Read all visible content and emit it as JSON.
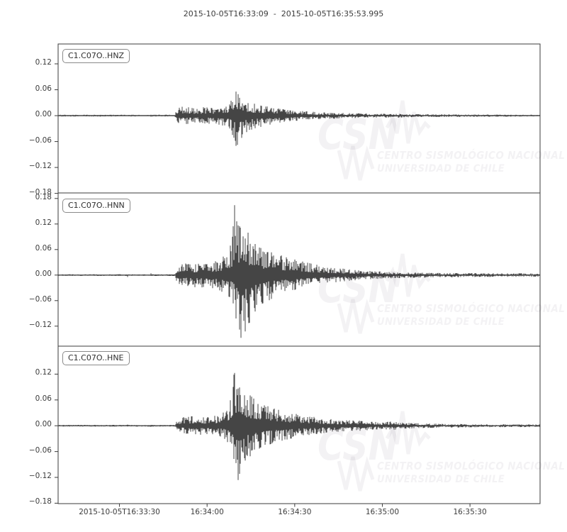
{
  "title": "2015-10-05T16:33:09  -  2015-10-05T16:35:53.995",
  "colors": {
    "background": "#ffffff",
    "trace": "#454545",
    "spine": "#3b3b3b",
    "tick_label": "#3c3c3c",
    "title_text": "#3c3c3c",
    "label_box_border": "#8a8a8a",
    "label_box_text": "#2f2f2f",
    "watermark": "rgba(40,20,50,0.055)"
  },
  "watermark": {
    "brand": "CSN",
    "line1": "CENTRO SISMOLÓGICO NACIONAL",
    "line2": "UNIVERSIDAD DE CHILE"
  },
  "time_axis": {
    "start": "2015-10-05T16:33:09",
    "end": "2015-10-05T16:35:53.995",
    "duration_s": 164.995,
    "ticks": [
      {
        "t": 21,
        "label": "2015-10-05T16:33:30"
      },
      {
        "t": 51,
        "label": "16:34:00"
      },
      {
        "t": 81,
        "label": "16:34:30"
      },
      {
        "t": 111,
        "label": "16:35:00"
      },
      {
        "t": 141,
        "label": "16:35:30"
      }
    ]
  },
  "chart_data": [
    {
      "type": "line",
      "label": "C1.C07O..HNZ",
      "ylim": [
        -0.179,
        0.166
      ],
      "yticks": [
        0.12,
        0.06,
        0.0,
        -0.06,
        -0.12,
        -0.18
      ],
      "peak": {
        "t_max": 61.0,
        "max": 0.057,
        "t_min": 61.3,
        "min": -0.072
      },
      "blips_t": [
        23.8,
        31.8
      ],
      "envelope_tpn": [
        [
          0,
          0.002,
          0.002
        ],
        [
          40,
          0.002,
          0.002
        ],
        [
          40.6,
          0.016,
          0.016
        ],
        [
          43,
          0.022,
          0.02
        ],
        [
          47,
          0.016,
          0.017
        ],
        [
          50,
          0.02,
          0.02
        ],
        [
          53,
          0.017,
          0.018
        ],
        [
          56,
          0.02,
          0.022
        ],
        [
          58.5,
          0.028,
          0.028
        ],
        [
          60,
          0.045,
          0.05
        ],
        [
          61,
          0.057,
          0.072
        ],
        [
          62.5,
          0.05,
          0.055
        ],
        [
          64,
          0.035,
          0.04
        ],
        [
          67,
          0.028,
          0.03
        ],
        [
          70,
          0.024,
          0.026
        ],
        [
          74,
          0.018,
          0.02
        ],
        [
          78,
          0.014,
          0.015
        ],
        [
          83,
          0.011,
          0.011
        ],
        [
          90,
          0.008,
          0.008
        ],
        [
          98,
          0.006,
          0.006
        ],
        [
          108,
          0.0045,
          0.0045
        ],
        [
          116,
          0.005,
          0.005
        ],
        [
          121,
          0.0035,
          0.0035
        ],
        [
          135,
          0.003,
          0.003
        ],
        [
          150,
          0.0025,
          0.0025
        ],
        [
          164.995,
          0.0022,
          0.0022
        ]
      ]
    },
    {
      "type": "line",
      "label": "C1.C07O..HNN",
      "ylim": [
        -0.167,
        0.193
      ],
      "yticks": [
        0.18,
        0.12,
        0.06,
        0.0,
        -0.06,
        -0.12
      ],
      "peak": {
        "t_max": 60.5,
        "max": 0.172,
        "t_min": 62.7,
        "min": -0.15
      },
      "blips_t": [
        23.8,
        31.8
      ],
      "envelope_tpn": [
        [
          0,
          0.002,
          0.002
        ],
        [
          40,
          0.002,
          0.002
        ],
        [
          40.6,
          0.02,
          0.018
        ],
        [
          43,
          0.028,
          0.025
        ],
        [
          46,
          0.024,
          0.028
        ],
        [
          49,
          0.03,
          0.03
        ],
        [
          52,
          0.028,
          0.032
        ],
        [
          55,
          0.035,
          0.035
        ],
        [
          57.5,
          0.05,
          0.045
        ],
        [
          59.5,
          0.08,
          0.06
        ],
        [
          60.5,
          0.172,
          0.09
        ],
        [
          61.5,
          0.12,
          0.12
        ],
        [
          62.7,
          0.11,
          0.15
        ],
        [
          63.5,
          0.13,
          0.14
        ],
        [
          65,
          0.1,
          0.12
        ],
        [
          67,
          0.08,
          0.09
        ],
        [
          69,
          0.065,
          0.07
        ],
        [
          72,
          0.055,
          0.06
        ],
        [
          75,
          0.05,
          0.05
        ],
        [
          78,
          0.042,
          0.042
        ],
        [
          82,
          0.035,
          0.035
        ],
        [
          86,
          0.028,
          0.028
        ],
        [
          90,
          0.022,
          0.022
        ],
        [
          95,
          0.017,
          0.017
        ],
        [
          100,
          0.013,
          0.013
        ],
        [
          106,
          0.01,
          0.01
        ],
        [
          112,
          0.008,
          0.008
        ],
        [
          120,
          0.0065,
          0.0065
        ],
        [
          130,
          0.005,
          0.005
        ],
        [
          142,
          0.0045,
          0.0045
        ],
        [
          155,
          0.004,
          0.004
        ],
        [
          164.995,
          0.004,
          0.004
        ]
      ]
    },
    {
      "type": "line",
      "label": "C1.C07O..HNE",
      "ylim": [
        -0.181,
        0.185
      ],
      "yticks": [
        0.12,
        0.06,
        0.0,
        -0.06,
        -0.12,
        -0.18
      ],
      "peak": {
        "t_max": 60.3,
        "max": 0.125,
        "t_min": 61.6,
        "min": -0.127
      },
      "blips_t": [
        23.8,
        31.8
      ],
      "envelope_tpn": [
        [
          0,
          0.002,
          0.002
        ],
        [
          40,
          0.002,
          0.002
        ],
        [
          40.6,
          0.015,
          0.014
        ],
        [
          43,
          0.02,
          0.018
        ],
        [
          46,
          0.022,
          0.02
        ],
        [
          49,
          0.019,
          0.021
        ],
        [
          52,
          0.021,
          0.022
        ],
        [
          55,
          0.025,
          0.025
        ],
        [
          57.5,
          0.035,
          0.032
        ],
        [
          59,
          0.06,
          0.05
        ],
        [
          60.3,
          0.125,
          0.08
        ],
        [
          61.6,
          0.1,
          0.127
        ],
        [
          63,
          0.085,
          0.09
        ],
        [
          65,
          0.075,
          0.075
        ],
        [
          67.5,
          0.06,
          0.062
        ],
        [
          70,
          0.05,
          0.05
        ],
        [
          73,
          0.042,
          0.042
        ],
        [
          77,
          0.034,
          0.034
        ],
        [
          81,
          0.028,
          0.028
        ],
        [
          86,
          0.022,
          0.022
        ],
        [
          91,
          0.017,
          0.017
        ],
        [
          97,
          0.013,
          0.013
        ],
        [
          103,
          0.012,
          0.012
        ],
        [
          110,
          0.008,
          0.008
        ],
        [
          114,
          0.01,
          0.01
        ],
        [
          118,
          0.007,
          0.007
        ],
        [
          124,
          0.0055,
          0.0055
        ],
        [
          132,
          0.0045,
          0.0045
        ],
        [
          145,
          0.0035,
          0.0035
        ],
        [
          164.995,
          0.003,
          0.003
        ]
      ]
    }
  ]
}
